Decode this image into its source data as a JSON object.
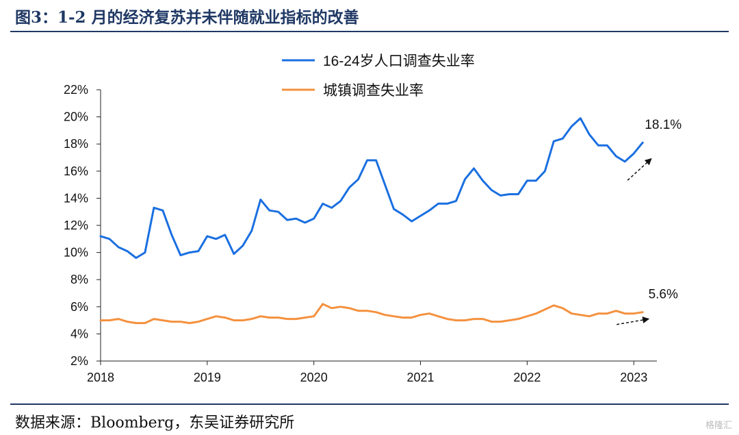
{
  "figure": {
    "title": "图3：1-2 月的经济复苏并未伴随就业指标的改善",
    "source": "数据来源：Bloomberg，东吴证券研究所",
    "watermark": "格隆汇"
  },
  "colors": {
    "youth": "#1a6fe0",
    "urban": "#f4913e",
    "header": "#1f3864",
    "arrow": "#111111"
  },
  "chart_data": {
    "type": "line",
    "x_unit": "month",
    "x_start": "2018-01",
    "xlim": [
      "2018-01",
      "2023-03"
    ],
    "x_ticks": [
      "2018",
      "2019",
      "2020",
      "2021",
      "2022",
      "2023"
    ],
    "ylim": [
      2,
      22
    ],
    "y_ticks": [
      "2%",
      "4%",
      "6%",
      "8%",
      "10%",
      "12%",
      "14%",
      "16%",
      "18%",
      "20%",
      "22%"
    ],
    "legend_position": "top-center",
    "series": [
      {
        "name": "16-24岁人口调查失业率",
        "color": "#1a6fe0",
        "values": [
          11.2,
          11.0,
          10.4,
          10.1,
          9.6,
          10.0,
          13.3,
          13.1,
          11.3,
          9.8,
          10.0,
          10.1,
          11.2,
          11.0,
          11.3,
          9.9,
          10.5,
          11.6,
          13.9,
          13.1,
          13.0,
          12.4,
          12.5,
          12.2,
          12.5,
          13.6,
          13.3,
          13.8,
          14.8,
          15.4,
          16.8,
          16.8,
          15.0,
          13.2,
          12.8,
          12.3,
          12.7,
          13.1,
          13.6,
          13.6,
          13.8,
          15.4,
          16.2,
          15.3,
          14.6,
          14.2,
          14.3,
          14.3,
          15.3,
          15.3,
          16.0,
          18.2,
          18.4,
          19.3,
          19.9,
          18.7,
          17.9,
          17.9,
          17.1,
          16.7,
          17.3,
          18.1
        ]
      },
      {
        "name": "城镇调查失业率",
        "color": "#f4913e",
        "values": [
          5.0,
          5.0,
          5.1,
          4.9,
          4.8,
          4.8,
          5.1,
          5.0,
          4.9,
          4.9,
          4.8,
          4.9,
          5.1,
          5.3,
          5.2,
          5.0,
          5.0,
          5.1,
          5.3,
          5.2,
          5.2,
          5.1,
          5.1,
          5.2,
          5.3,
          6.2,
          5.9,
          6.0,
          5.9,
          5.7,
          5.7,
          5.6,
          5.4,
          5.3,
          5.2,
          5.2,
          5.4,
          5.5,
          5.3,
          5.1,
          5.0,
          5.0,
          5.1,
          5.1,
          4.9,
          4.9,
          5.0,
          5.1,
          5.3,
          5.5,
          5.8,
          6.1,
          5.9,
          5.5,
          5.4,
          5.3,
          5.5,
          5.5,
          5.7,
          5.5,
          5.5,
          5.6
        ]
      }
    ],
    "annotations": [
      {
        "series": 0,
        "text": "18.1%",
        "arrow": "solid"
      },
      {
        "series": 1,
        "text": "5.6%",
        "arrow": "dashed"
      }
    ]
  }
}
